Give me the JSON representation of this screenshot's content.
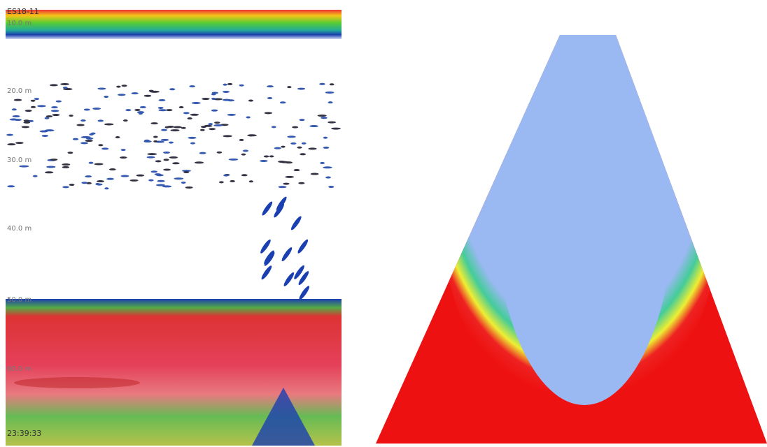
{
  "echogram": {
    "title": "ES18-11",
    "depth_labels": [
      "10.0 m",
      "20.0 m",
      "30.0 m",
      "40.0 m",
      "50.0 m",
      "60.0 m"
    ],
    "time": "23:39:33"
  }
}
